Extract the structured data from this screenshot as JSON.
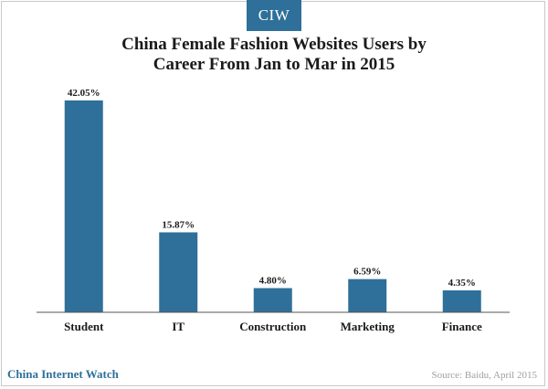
{
  "logo": "CIW",
  "footer": {
    "brand": "China Internet Watch",
    "source": "Source: Baidu, April 2015"
  },
  "colors": {
    "bar": "#2e7099",
    "brand": "#2e7099",
    "axis": "#555555"
  },
  "chart_data": {
    "type": "bar",
    "title_lines": [
      "China Female Fashion Websites Users by",
      "Career From Jan to Mar in 2015"
    ],
    "categories": [
      "Student",
      "IT",
      "Construction",
      "Marketing",
      "Finance"
    ],
    "values": [
      42.05,
      15.87,
      4.8,
      6.59,
      4.35
    ],
    "value_labels": [
      "42.05%",
      "15.87%",
      "4.80%",
      "6.59%",
      "4.35%"
    ],
    "xlabel": "",
    "ylabel": "",
    "ylim": [
      0,
      42.05
    ],
    "grid": false,
    "legend": "none"
  }
}
